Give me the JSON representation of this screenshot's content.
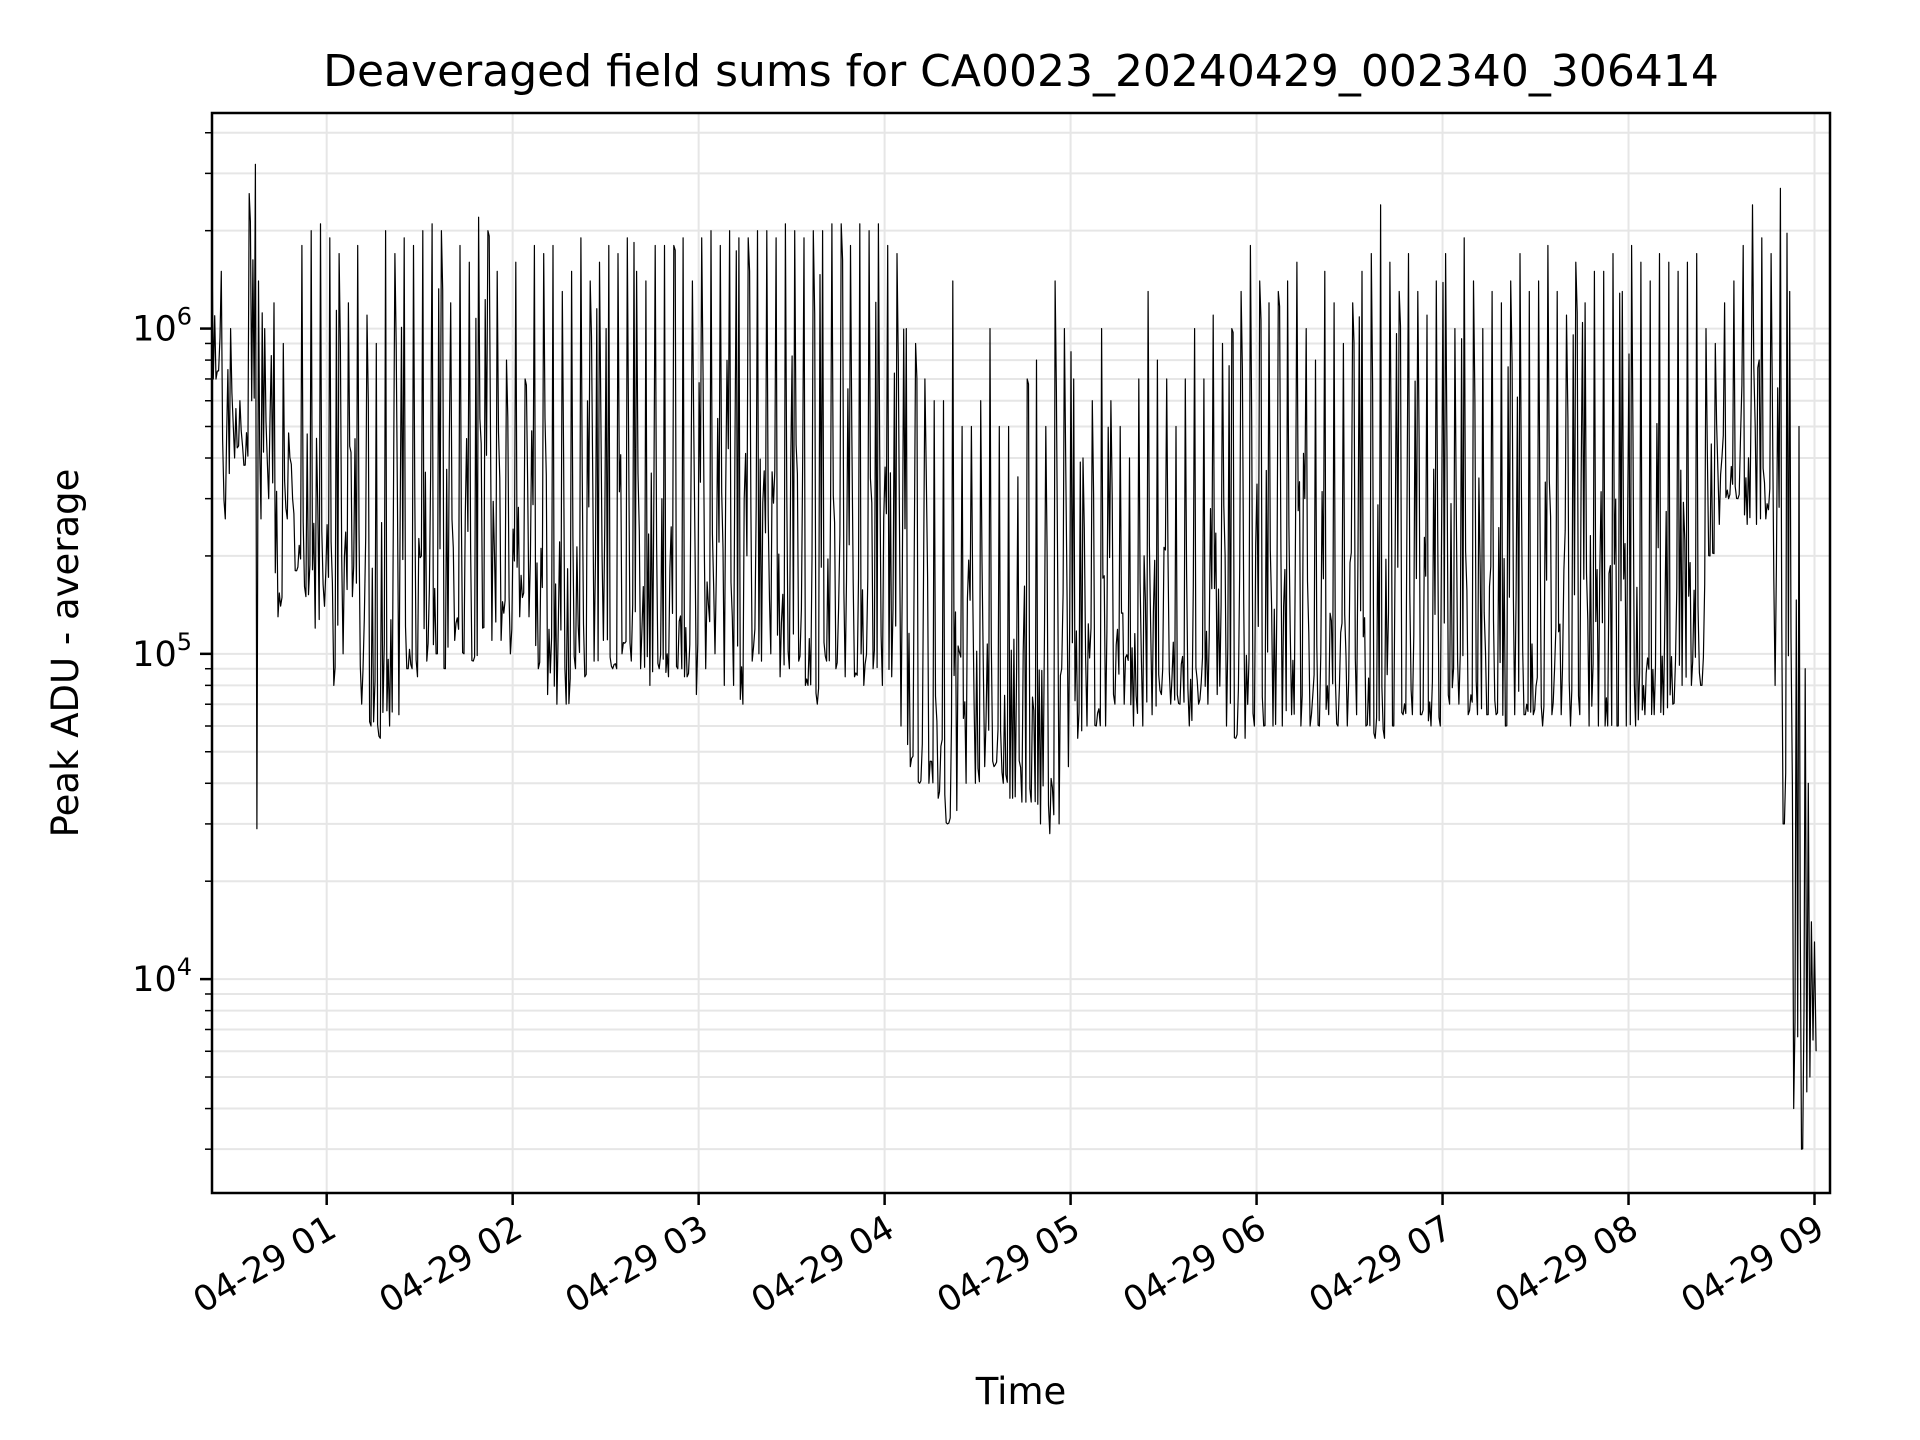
{
  "chart_data": {
    "type": "line",
    "title": "Deaveraged field sums for CA0023_20240429_002340_306414",
    "xlabel": "Time",
    "ylabel": "Peak ADU - average",
    "yscale": "log",
    "xlim": [
      "2024-04-29 00:23",
      "2024-04-29 09:05"
    ],
    "ylim": [
      2200,
      4600000
    ],
    "grid": true,
    "x_ticks": [
      {
        "label": "04-29 01",
        "value": "2024-04-29 01:00"
      },
      {
        "label": "04-29 02",
        "value": "2024-04-29 02:00"
      },
      {
        "label": "04-29 03",
        "value": "2024-04-29 03:00"
      },
      {
        "label": "04-29 04",
        "value": "2024-04-29 04:00"
      },
      {
        "label": "04-29 05",
        "value": "2024-04-29 05:00"
      },
      {
        "label": "04-29 06",
        "value": "2024-04-29 06:00"
      },
      {
        "label": "04-29 07",
        "value": "2024-04-29 07:00"
      },
      {
        "label": "04-29 08",
        "value": "2024-04-29 08:00"
      },
      {
        "label": "04-29 09",
        "value": "2024-04-29 09:00"
      }
    ],
    "y_ticks": [
      {
        "base": "10",
        "exp": "4",
        "value": 10000
      },
      {
        "base": "10",
        "exp": "5",
        "value": 100000
      },
      {
        "base": "10",
        "exp": "6",
        "value": 1000000
      }
    ],
    "series": [
      {
        "color": "#000000",
        "x": [
          "2024-04-29 00:23",
          "2024-04-29 00:26",
          "2024-04-29 00:29",
          "2024-04-29 00:32",
          "2024-04-29 00:35",
          "2024-04-29 00:37",
          "2024-04-29 00:38",
          "2024-04-29 00:40",
          "2024-04-29 00:43",
          "2024-04-29 00:46",
          "2024-04-29 00:49",
          "2024-04-29 00:52",
          "2024-04-29 00:55",
          "2024-04-29 00:58",
          "2024-04-29 01:01",
          "2024-04-29 01:04",
          "2024-04-29 01:07",
          "2024-04-29 01:10",
          "2024-04-29 01:13",
          "2024-04-29 01:16",
          "2024-04-29 01:19",
          "2024-04-29 01:22",
          "2024-04-29 01:25",
          "2024-04-29 01:28",
          "2024-04-29 01:31",
          "2024-04-29 01:34",
          "2024-04-29 01:37",
          "2024-04-29 01:40",
          "2024-04-29 01:43",
          "2024-04-29 01:46",
          "2024-04-29 01:49",
          "2024-04-29 01:52",
          "2024-04-29 01:55",
          "2024-04-29 01:58",
          "2024-04-29 02:01",
          "2024-04-29 02:04",
          "2024-04-29 02:07",
          "2024-04-29 02:10",
          "2024-04-29 02:13",
          "2024-04-29 02:16",
          "2024-04-29 02:19",
          "2024-04-29 02:22",
          "2024-04-29 02:25",
          "2024-04-29 02:28",
          "2024-04-29 02:31",
          "2024-04-29 02:34",
          "2024-04-29 02:37",
          "2024-04-29 02:40",
          "2024-04-29 02:43",
          "2024-04-29 02:46",
          "2024-04-29 02:49",
          "2024-04-29 02:52",
          "2024-04-29 02:55",
          "2024-04-29 02:58",
          "2024-04-29 03:01",
          "2024-04-29 03:04",
          "2024-04-29 03:07",
          "2024-04-29 03:10",
          "2024-04-29 03:13",
          "2024-04-29 03:16",
          "2024-04-29 03:19",
          "2024-04-29 03:22",
          "2024-04-29 03:25",
          "2024-04-29 03:28",
          "2024-04-29 03:31",
          "2024-04-29 03:34",
          "2024-04-29 03:37",
          "2024-04-29 03:40",
          "2024-04-29 03:43",
          "2024-04-29 03:46",
          "2024-04-29 03:49",
          "2024-04-29 03:52",
          "2024-04-29 03:55",
          "2024-04-29 03:58",
          "2024-04-29 04:01",
          "2024-04-29 04:04",
          "2024-04-29 04:07",
          "2024-04-29 04:10",
          "2024-04-29 04:13",
          "2024-04-29 04:16",
          "2024-04-29 04:19",
          "2024-04-29 04:22",
          "2024-04-29 04:25",
          "2024-04-29 04:28",
          "2024-04-29 04:31",
          "2024-04-29 04:34",
          "2024-04-29 04:37",
          "2024-04-29 04:40",
          "2024-04-29 04:43",
          "2024-04-29 04:46",
          "2024-04-29 04:49",
          "2024-04-29 04:52",
          "2024-04-29 04:55",
          "2024-04-29 04:58",
          "2024-04-29 05:01",
          "2024-04-29 05:04",
          "2024-04-29 05:07",
          "2024-04-29 05:10",
          "2024-04-29 05:13",
          "2024-04-29 05:16",
          "2024-04-29 05:19",
          "2024-04-29 05:22",
          "2024-04-29 05:25",
          "2024-04-29 05:28",
          "2024-04-29 05:31",
          "2024-04-29 05:34",
          "2024-04-29 05:37",
          "2024-04-29 05:40",
          "2024-04-29 05:43",
          "2024-04-29 05:46",
          "2024-04-29 05:49",
          "2024-04-29 05:52",
          "2024-04-29 05:55",
          "2024-04-29 05:58",
          "2024-04-29 06:01",
          "2024-04-29 06:04",
          "2024-04-29 06:07",
          "2024-04-29 06:10",
          "2024-04-29 06:13",
          "2024-04-29 06:16",
          "2024-04-29 06:19",
          "2024-04-29 06:22",
          "2024-04-29 06:25",
          "2024-04-29 06:28",
          "2024-04-29 06:31",
          "2024-04-29 06:34",
          "2024-04-29 06:37",
          "2024-04-29 06:40",
          "2024-04-29 06:43",
          "2024-04-29 06:46",
          "2024-04-29 06:49",
          "2024-04-29 06:52",
          "2024-04-29 06:55",
          "2024-04-29 06:58",
          "2024-04-29 07:01",
          "2024-04-29 07:04",
          "2024-04-29 07:07",
          "2024-04-29 07:10",
          "2024-04-29 07:13",
          "2024-04-29 07:16",
          "2024-04-29 07:19",
          "2024-04-29 07:22",
          "2024-04-29 07:25",
          "2024-04-29 07:28",
          "2024-04-29 07:31",
          "2024-04-29 07:34",
          "2024-04-29 07:37",
          "2024-04-29 07:40",
          "2024-04-29 07:43",
          "2024-04-29 07:46",
          "2024-04-29 07:49",
          "2024-04-29 07:52",
          "2024-04-29 07:55",
          "2024-04-29 07:58",
          "2024-04-29 08:01",
          "2024-04-29 08:04",
          "2024-04-29 08:07",
          "2024-04-29 08:10",
          "2024-04-29 08:13",
          "2024-04-29 08:16",
          "2024-04-29 08:19",
          "2024-04-29 08:22",
          "2024-04-29 08:25",
          "2024-04-29 08:28",
          "2024-04-29 08:31",
          "2024-04-29 08:34",
          "2024-04-29 08:37",
          "2024-04-29 08:40",
          "2024-04-29 08:43",
          "2024-04-29 08:46",
          "2024-04-29 08:49",
          "2024-04-29 08:52",
          "2024-04-29 08:55",
          "2024-04-29 08:57",
          "2024-04-29 08:58",
          "2024-04-29 08:59",
          "2024-04-29 09:00",
          "2024-04-29 09:01",
          "2024-04-29 09:02",
          "2024-04-29 09:03",
          "2024-04-29 09:04"
        ],
        "min": [
          700000,
          260000,
          400000,
          380000,
          600000,
          29000,
          260000,
          300000,
          130000,
          260000,
          180000,
          150000,
          120000,
          140000,
          80000,
          100000,
          150000,
          70000,
          60000,
          55000,
          60000,
          65000,
          90000,
          85000,
          95000,
          100000,
          90000,
          110000,
          100000,
          95000,
          120000,
          110000,
          110000,
          100000,
          130000,
          130000,
          90000,
          75000,
          70000,
          70000,
          90000,
          85000,
          95000,
          110000,
          90000,
          100000,
          95000,
          90000,
          80000,
          90000,
          85000,
          90000,
          85000,
          75000,
          90000,
          100000,
          80000,
          80000,
          70000,
          95000,
          95000,
          100000,
          85000,
          90000,
          95000,
          80000,
          70000,
          95000,
          90000,
          85000,
          85000,
          80000,
          90000,
          80000,
          85000,
          60000,
          45000,
          40000,
          40000,
          36000,
          30000,
          33000,
          40000,
          40000,
          45000,
          45000,
          40000,
          36000,
          35000,
          35000,
          30000,
          28000,
          30000,
          45000,
          55000,
          60000,
          60000,
          60000,
          70000,
          70000,
          60000,
          60000,
          65000,
          75000,
          70000,
          70000,
          60000,
          70000,
          70000,
          75000,
          60000,
          55000,
          55000,
          60000,
          60000,
          60000,
          60000,
          65000,
          60000,
          60000,
          60000,
          65000,
          60000,
          60000,
          65000,
          60000,
          55000,
          55000,
          60000,
          65000,
          65000,
          65000,
          60000,
          60000,
          70000,
          70000,
          65000,
          65000,
          65000,
          65000,
          60000,
          65000,
          65000,
          65000,
          60000,
          65000,
          65000,
          60000,
          65000,
          60000,
          60000,
          60000,
          60000,
          60000,
          60000,
          65000,
          65000,
          65000,
          70000,
          80000,
          80000,
          80000,
          200000,
          250000,
          300000,
          300000,
          250000,
          250000,
          260000,
          80000,
          30000,
          4000,
          3000,
          4500,
          5000,
          6500,
          6000
        ],
        "max": [
          1800000,
          1500000,
          1000000,
          600000,
          2600000,
          3200000,
          1400000,
          1000000,
          1200000,
          900000,
          300000,
          1800000,
          2000000,
          2100000,
          1900000,
          1700000,
          1200000,
          1800000,
          1100000,
          900000,
          2000000,
          1700000,
          1900000,
          1800000,
          2000000,
          2100000,
          2000000,
          1200000,
          1800000,
          1600000,
          2200000,
          2000000,
          1500000,
          800000,
          1600000,
          700000,
          1800000,
          1700000,
          1800000,
          1300000,
          1500000,
          1900000,
          1400000,
          1600000,
          1800000,
          1700000,
          1900000,
          1500000,
          1400000,
          1800000,
          1800000,
          1800000,
          1900000,
          1400000,
          1900000,
          2000000,
          1800000,
          2000000,
          1900000,
          1900000,
          2000000,
          2000000,
          1900000,
          2100000,
          2000000,
          1900000,
          2000000,
          2000000,
          2100000,
          2100000,
          1800000,
          2100000,
          2000000,
          2100000,
          1800000,
          1700000,
          1000000,
          900000,
          700000,
          600000,
          600000,
          1400000,
          500000,
          500000,
          600000,
          1000000,
          500000,
          500000,
          350000,
          700000,
          800000,
          500000,
          1400000,
          1000000,
          700000,
          400000,
          600000,
          1000000,
          600000,
          500000,
          400000,
          700000,
          1300000,
          800000,
          700000,
          500000,
          700000,
          1000000,
          700000,
          1100000,
          900000,
          1000000,
          1300000,
          1800000,
          1400000,
          1200000,
          1300000,
          1400000,
          1600000,
          1000000,
          800000,
          1500000,
          1200000,
          900000,
          1200000,
          1500000,
          1700000,
          2400000,
          1600000,
          1300000,
          1700000,
          1300000,
          1100000,
          1400000,
          1700000,
          1000000,
          1900000,
          1400000,
          1000000,
          1300000,
          1200000,
          1400000,
          1700000,
          1300000,
          1400000,
          1800000,
          1300000,
          1100000,
          1600000,
          1200000,
          1500000,
          1500000,
          1700000,
          1300000,
          1800000,
          1600000,
          1400000,
          1700000,
          1600000,
          1500000,
          1600000,
          1700000,
          1000000,
          900000,
          1200000,
          1400000,
          1800000,
          2400000,
          1900000,
          1700000,
          2700000,
          1300000,
          500000,
          90000,
          40000,
          15000,
          13000,
          14000,
          12000,
          15000
        ]
      }
    ]
  }
}
